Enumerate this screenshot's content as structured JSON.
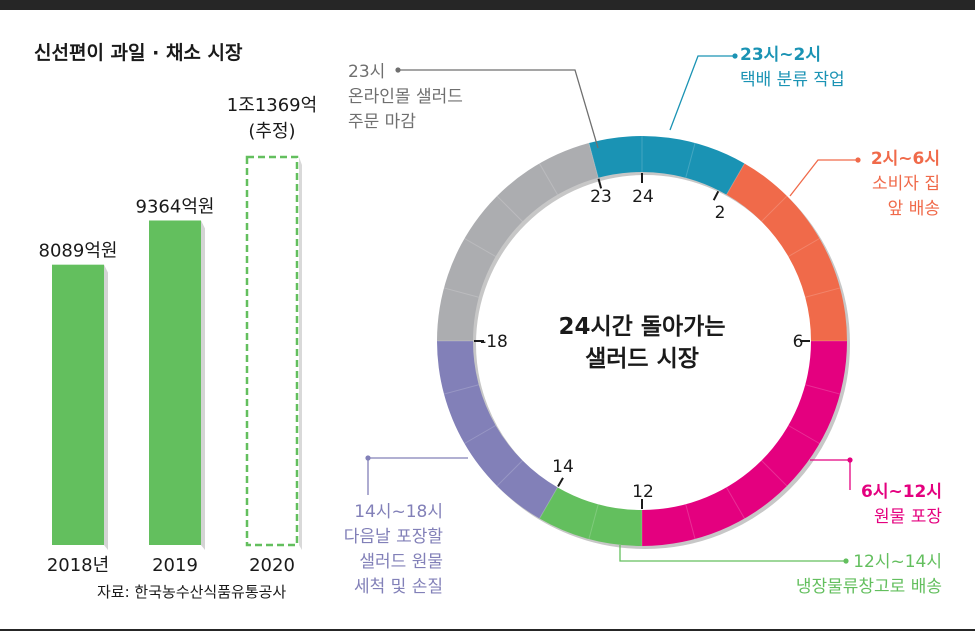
{
  "title": "신선편이 과일 · 채소 시장",
  "source": "자료: 한국농수산식품유통공사",
  "colors": {
    "bar": "#63bf5e",
    "ring_gray": "#acadb0",
    "cyan": "#1a93b4",
    "orange": "#f06a4a",
    "magenta": "#e4007f",
    "green": "#63bf5e",
    "purple": "#8280b8",
    "text_gray": "#6f6f6f"
  },
  "chart_data": [
    {
      "type": "bar",
      "title": "신선편이 과일 · 채소 시장",
      "categories": [
        "2018년",
        "2019",
        "2020"
      ],
      "values": [
        8089,
        9364,
        11369
      ],
      "value_labels": [
        "8089억원",
        "9364억원",
        "1조1369억"
      ],
      "value_sublabels": [
        "",
        "",
        "(추정)"
      ],
      "estimated": [
        false,
        false,
        true
      ]
    },
    {
      "type": "pie",
      "title": "24시간 돌아가는\n샐러드 시장",
      "ticks": [
        "24",
        "2",
        "6",
        "12",
        "14",
        "-18",
        "23"
      ],
      "segments": [
        {
          "start": 23,
          "end": 2,
          "color": "#1a93b4",
          "time": "23시~2시",
          "desc": [
            "택배 분류 작업"
          ]
        },
        {
          "start": 2,
          "end": 6,
          "color": "#f06a4a",
          "time": "2시~6시",
          "desc": [
            "소비자 집",
            "앞 배송"
          ]
        },
        {
          "start": 6,
          "end": 12,
          "color": "#e4007f",
          "time": "6시~12시",
          "desc": [
            "원물 포장"
          ]
        },
        {
          "start": 12,
          "end": 14,
          "color": "#63bf5e",
          "time": "12시~14시",
          "desc": [
            "냉장물류창고로 배송"
          ]
        },
        {
          "start": 14,
          "end": 18,
          "color": "#8280b8",
          "time": "14시~18시",
          "desc": [
            "다음날 포장할",
            "샐러드 원물",
            "세척 및 손질"
          ]
        },
        {
          "start": 18,
          "end": 23,
          "color": "#acadb0",
          "time": "",
          "desc": []
        }
      ],
      "annotation_23": {
        "time": "23시",
        "desc": [
          "온라인몰 샐러드",
          "주문 마감"
        ]
      }
    }
  ]
}
